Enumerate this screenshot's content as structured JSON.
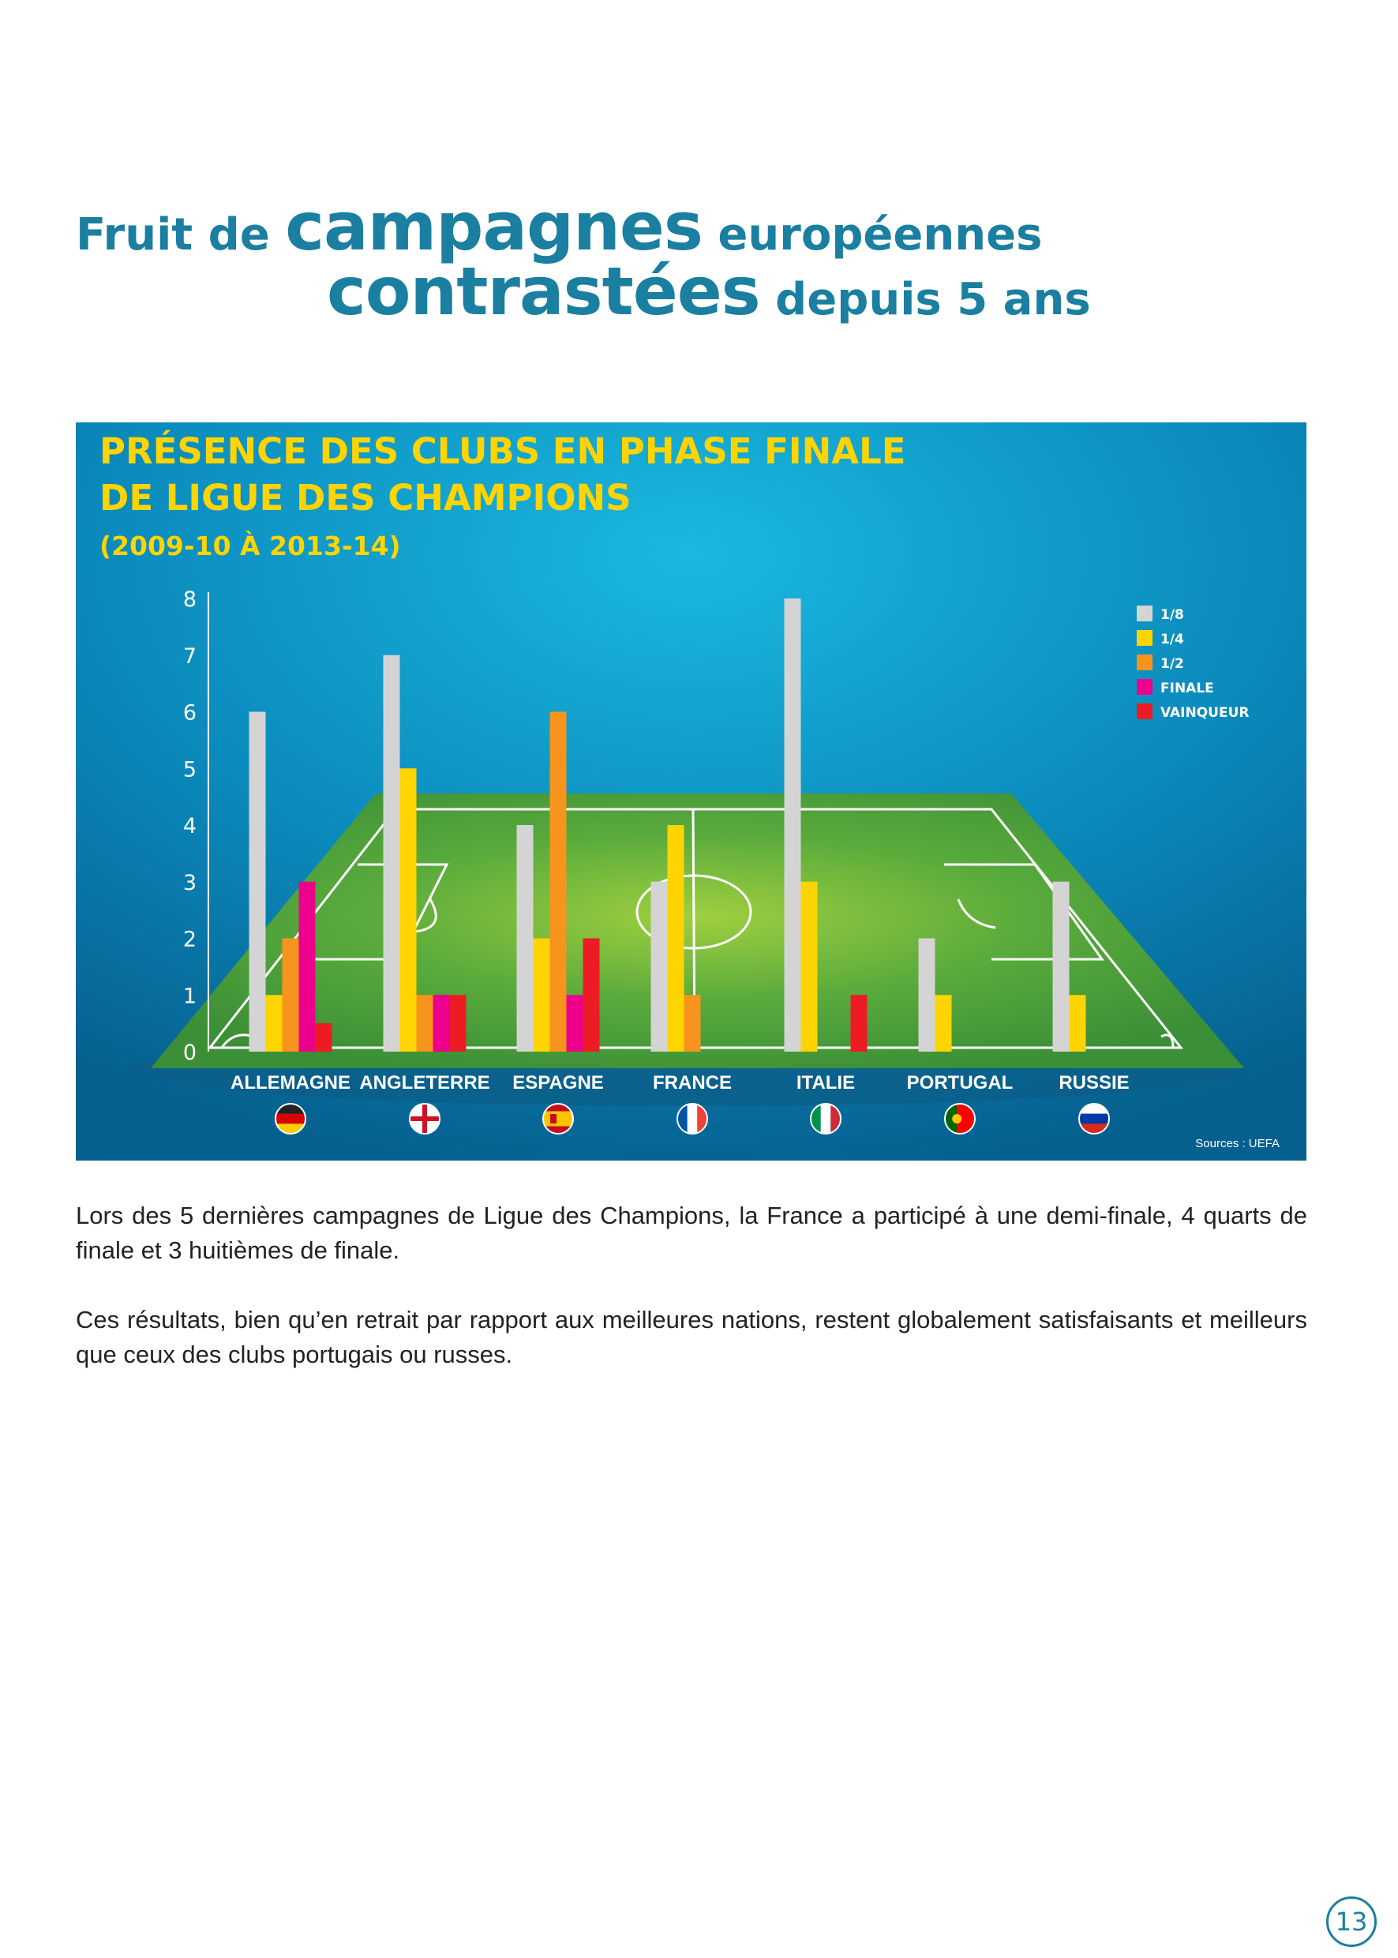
{
  "heading": {
    "line1": [
      {
        "text": "Fruit de ",
        "size": "sm"
      },
      {
        "text": "campagnes",
        "size": "lg"
      },
      {
        "text": " européennes",
        "size": "sm"
      }
    ],
    "line2": [
      {
        "text": "contrastées",
        "size": "lg"
      },
      {
        "text": " depuis 5 ans",
        "size": "sm"
      }
    ]
  },
  "chart_data": {
    "type": "bar",
    "title_lines": [
      "PRÉSENCE DES CLUBS EN PHASE FINALE",
      "DE LIGUE DES CHAMPIONS"
    ],
    "subtitle": "(2009-10 À 2013-14)",
    "categories": [
      "ALLEMAGNE",
      "ANGLETERRE",
      "ESPAGNE",
      "FRANCE",
      "ITALIE",
      "PORTUGAL",
      "RUSSIE"
    ],
    "series": [
      {
        "name": "1/8",
        "color": "#d4d4d4",
        "values": [
          6,
          7,
          4,
          3,
          8,
          2,
          3
        ]
      },
      {
        "name": "1/4",
        "color": "#ffd400",
        "values": [
          1,
          5,
          2,
          4,
          3,
          1,
          1
        ]
      },
      {
        "name": "1/2",
        "color": "#f7941d",
        "values": [
          2,
          1,
          6,
          1,
          0,
          0,
          0
        ]
      },
      {
        "name": "FINALE",
        "color": "#ec008c",
        "values": [
          3,
          1,
          1,
          0,
          0,
          0,
          0
        ]
      },
      {
        "name": "VAINQUEUR",
        "color": "#ed1c24",
        "values": [
          0.5,
          1,
          2,
          0,
          1,
          0,
          0
        ]
      }
    ],
    "yticks": [
      0,
      1,
      2,
      3,
      4,
      5,
      6,
      7,
      8
    ],
    "ylim": [
      0,
      8
    ],
    "legend_position": "top-right",
    "grid": false,
    "source": "Sources : UEFA",
    "flags": [
      "germany-flag",
      "england-flag",
      "spain-flag",
      "france-flag",
      "italy-flag",
      "portugal-flag",
      "russia-flag"
    ]
  },
  "body": {
    "paragraphs": [
      "Lors des 5 dernières campagnes de Ligue des Champions, la France a participé à une demi-finale, 4 quarts de finale et 3 huitièmes de finale.",
      "Ces résultats, bien qu’en retrait par rapport aux meilleures nations, restent globalement satisfaisants et meilleurs que ceux des clubs portugais ou russes."
    ]
  },
  "page_number": "13"
}
